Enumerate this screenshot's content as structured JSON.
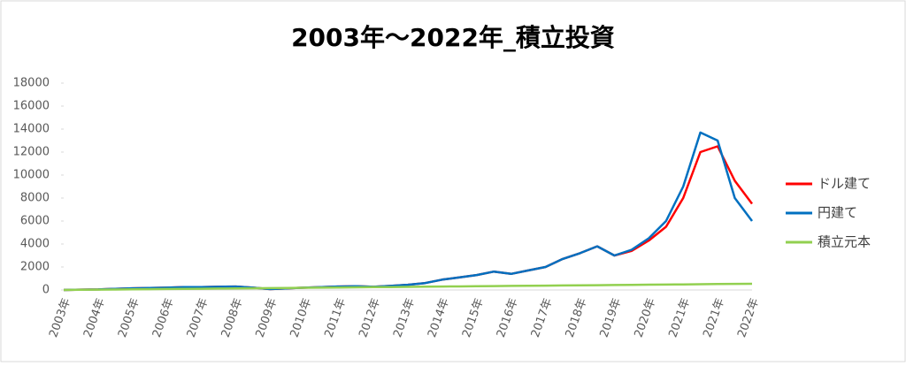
{
  "chart_data": {
    "type": "line",
    "title": "2003年～2022年_積立投資",
    "categories": [
      "2003年",
      null,
      "2004年",
      null,
      "2005年",
      null,
      "2006年",
      null,
      "2007年",
      null,
      "2008年",
      null,
      "2009年",
      null,
      "2010年",
      null,
      "2011年",
      null,
      "2012年",
      null,
      "2013年",
      null,
      "2014年",
      null,
      "2015年",
      null,
      "2016年",
      null,
      "2017年",
      null,
      "2018年",
      null,
      "2019年",
      null,
      "2020年",
      null,
      "2021年",
      null,
      "2021年",
      null,
      "2022年"
    ],
    "series": [
      {
        "name": "ドル建て",
        "color": "#ff0000",
        "values": [
          0,
          30,
          50,
          100,
          150,
          180,
          200,
          250,
          250,
          280,
          300,
          200,
          80,
          150,
          200,
          250,
          300,
          320,
          280,
          350,
          450,
          600,
          900,
          1100,
          1300,
          1600,
          1400,
          1700,
          2000,
          2700,
          3200,
          3800,
          3000,
          3400,
          4300,
          5500,
          8000,
          12000,
          12500,
          9500,
          7500
        ]
      },
      {
        "name": "円建て",
        "color": "#0070c0",
        "values": [
          0,
          30,
          50,
          100,
          150,
          180,
          200,
          250,
          250,
          280,
          300,
          200,
          80,
          150,
          200,
          250,
          300,
          320,
          280,
          350,
          450,
          600,
          900,
          1100,
          1300,
          1600,
          1400,
          1700,
          2000,
          2700,
          3200,
          3800,
          3000,
          3500,
          4500,
          6000,
          9000,
          13700,
          13000,
          8000,
          6000
        ]
      },
      {
        "name": "積立元本",
        "color": "#92d050",
        "values": [
          0,
          14,
          27,
          41,
          54,
          68,
          81,
          95,
          108,
          122,
          135,
          149,
          162,
          176,
          189,
          203,
          216,
          230,
          243,
          257,
          270,
          284,
          297,
          311,
          324,
          338,
          351,
          365,
          378,
          392,
          405,
          419,
          432,
          446,
          459,
          473,
          486,
          500,
          513,
          527,
          540
        ]
      }
    ],
    "ylim": [
      0,
      18000
    ],
    "yticks": [
      0,
      2000,
      4000,
      6000,
      8000,
      10000,
      12000,
      14000,
      16000,
      18000
    ],
    "legend": "right"
  }
}
